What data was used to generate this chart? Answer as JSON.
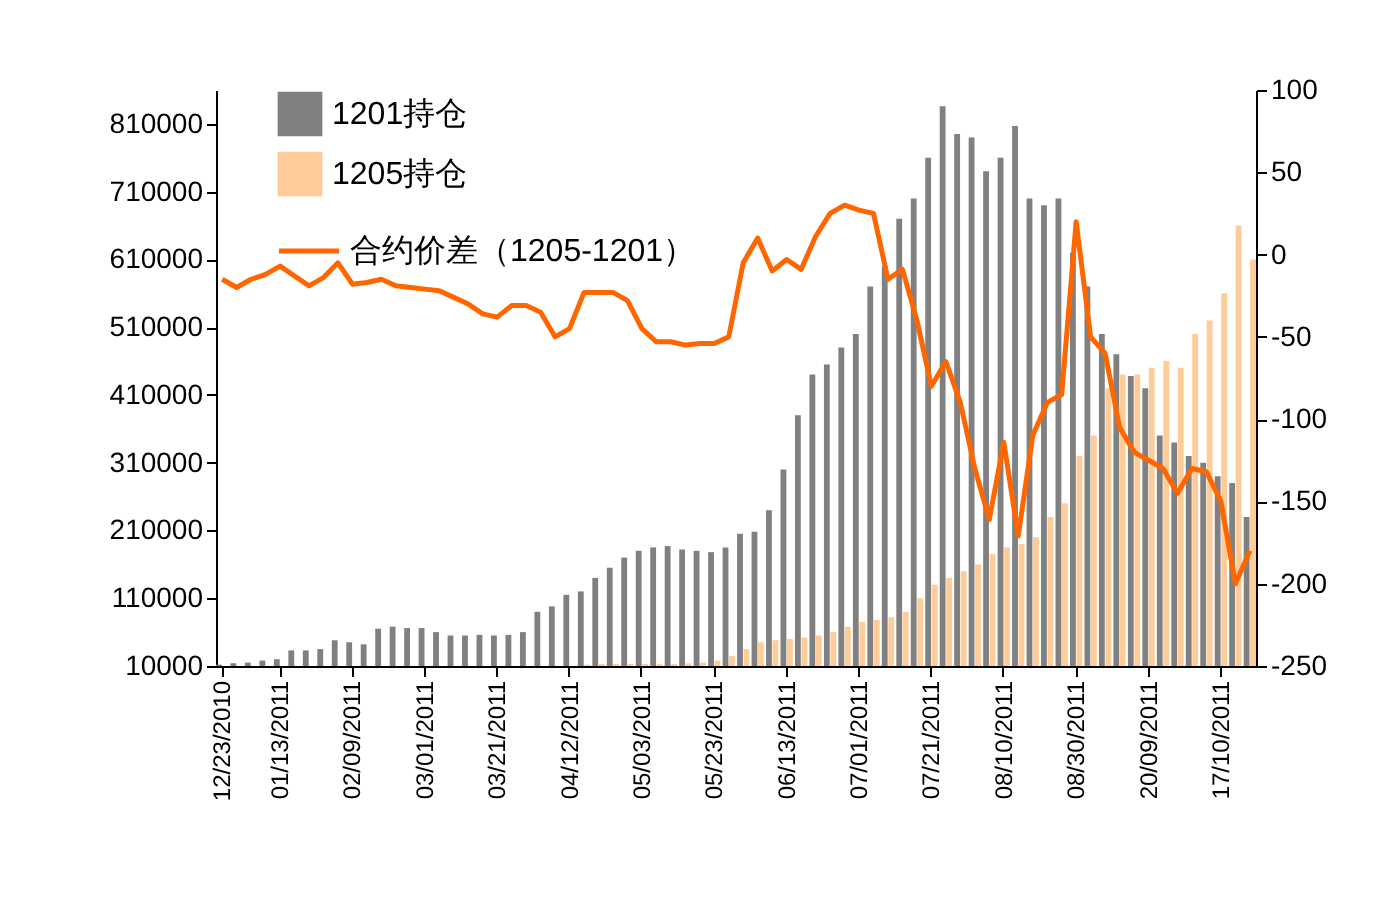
{
  "chart_data": {
    "type": "bar",
    "categories": [
      "12/23/2010",
      null,
      null,
      null,
      "01/13/2011",
      null,
      null,
      null,
      null,
      "02/09/2011",
      null,
      null,
      null,
      null,
      "03/01/2011",
      null,
      null,
      null,
      null,
      "03/21/2011",
      null,
      null,
      null,
      null,
      "04/12/2011",
      null,
      null,
      null,
      null,
      "05/03/2011",
      null,
      null,
      null,
      null,
      "05/23/2011",
      null,
      null,
      null,
      null,
      "06/13/2011",
      null,
      null,
      null,
      null,
      "07/01/2011",
      null,
      null,
      null,
      null,
      "07/21/2011",
      null,
      null,
      null,
      null,
      "08/10/2011",
      null,
      null,
      null,
      null,
      "08/30/2011",
      null,
      null,
      null,
      null,
      "20/09/2011",
      null,
      null,
      null,
      null,
      "17/10/2011",
      null,
      null
    ],
    "series": [
      {
        "name": "1201持仓",
        "color": "#808080",
        "values": [
          12000,
          14000,
          15000,
          18000,
          20000,
          33000,
          33000,
          35000,
          48000,
          45000,
          42000,
          65000,
          68000,
          66000,
          66000,
          60000,
          55000,
          55000,
          56000,
          55000,
          56000,
          60000,
          90000,
          98000,
          115000,
          120000,
          140000,
          155000,
          170000,
          180000,
          185000,
          187000,
          182000,
          180000,
          178000,
          185000,
          205000,
          208000,
          240000,
          300000,
          380000,
          440000,
          455000,
          480000,
          500000,
          570000,
          600000,
          670000,
          700000,
          760000,
          836000,
          795000,
          790000,
          740000,
          760000,
          807000,
          700000,
          690000,
          700000,
          620000,
          570000,
          500000,
          470000,
          438000,
          420000,
          350000,
          340000,
          320000,
          310000,
          290000,
          280000,
          230000
        ]
      },
      {
        "name": "1205持仓",
        "color": "#ffcc99",
        "values": [
          10000,
          10000,
          10000,
          10000,
          10000,
          10000,
          10000,
          10000,
          10000,
          10000,
          10000,
          10000,
          10000,
          10000,
          10000,
          10000,
          10000,
          10000,
          10000,
          10000,
          10000,
          10000,
          10000,
          10000,
          10000,
          12000,
          13000,
          13000,
          13000,
          13000,
          13000,
          13000,
          14000,
          15000,
          18000,
          25000,
          35000,
          45000,
          48000,
          50000,
          52000,
          55000,
          60000,
          68000,
          75000,
          78000,
          82000,
          90000,
          110000,
          130000,
          140000,
          150000,
          160000,
          175000,
          185000,
          190000,
          200000,
          230000,
          250000,
          320000,
          350000,
          420000,
          440000,
          440000,
          450000,
          460000,
          450000,
          500000,
          520000,
          560000,
          660000,
          610000
        ]
      },
      {
        "name": "合约价差（1205-1201）",
        "type": "line",
        "axis": "y2",
        "color": "#ff6600",
        "values": [
          -15,
          -20,
          -15,
          -12,
          -7,
          -13,
          -19,
          -14,
          -5,
          -18,
          -17,
          -15,
          -19,
          -20,
          -21,
          -22,
          -26,
          -30,
          -36,
          -38,
          -31,
          -31,
          -35,
          -50,
          -45,
          -23,
          -23,
          -23,
          -28,
          -45,
          -53,
          -53,
          -55,
          -54,
          -54,
          -50,
          -5,
          10,
          -10,
          -3,
          -9,
          11,
          25,
          30,
          27,
          25,
          -15,
          -9,
          -40,
          -80,
          -65,
          -90,
          -130,
          -161,
          -114,
          -171,
          -110,
          -90,
          -85,
          20,
          -50,
          -60,
          -105,
          -120,
          -125,
          -130,
          -145,
          -130,
          -132,
          -150,
          -200,
          -180
        ]
      }
    ],
    "ylim": [
      10000,
      860000
    ],
    "yticks": [
      10000,
      110000,
      210000,
      310000,
      410000,
      510000,
      610000,
      710000,
      810000
    ],
    "y2lim": [
      -250,
      100
    ],
    "y2ticks": [
      -250,
      -200,
      -150,
      -100,
      -50,
      0,
      50,
      100
    ],
    "grid": false,
    "legend": "top left"
  }
}
